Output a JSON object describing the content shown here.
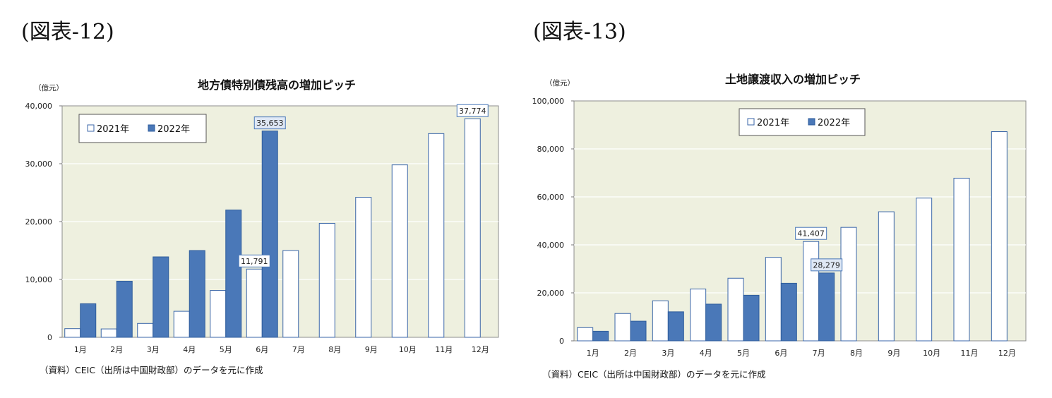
{
  "figures": [
    {
      "label": "(図表-12)",
      "source": "（資料）CEIC（出所は中国財政部）のデータを元に作成",
      "chart_data": {
        "type": "bar",
        "title": "地方債特別債残高の増加ピッチ",
        "ylabel": "（億元）",
        "xlabel": "",
        "ylim": [
          0,
          40000
        ],
        "yticks": [
          0,
          10000,
          20000,
          30000,
          40000
        ],
        "ytick_labels": [
          "0",
          "10,000",
          "20,000",
          "30,000",
          "40,000"
        ],
        "categories": [
          "1月",
          "2月",
          "3月",
          "4月",
          "5月",
          "6月",
          "7月",
          "8月",
          "9月",
          "10月",
          "11月",
          "12月"
        ],
        "series": [
          {
            "name": "2021年",
            "color": "#ffffff",
            "values": [
              1500,
              1450,
              2400,
              4500,
              8100,
              11791,
              15000,
              19700,
              24200,
              29800,
              35200,
              37774
            ]
          },
          {
            "name": "2022年",
            "color": "#4a78b8",
            "values": [
              5800,
              9700,
              13900,
              15000,
              22000,
              35653,
              null,
              null,
              null,
              null,
              null,
              null
            ]
          }
        ],
        "annotations": [
          {
            "series": 0,
            "index": 5,
            "text": "11,791"
          },
          {
            "series": 1,
            "index": 5,
            "text": "35,653"
          },
          {
            "series": 0,
            "index": 11,
            "text": "37,774"
          }
        ],
        "legend_position": "top-left",
        "grid": true,
        "plot_bg": "#eef0df"
      }
    },
    {
      "label": "(図表-13)",
      "source": "（資料）CEIC（出所は中国財政部）のデータを元に作成",
      "chart_data": {
        "type": "bar",
        "title": "土地譲渡収入の増加ピッチ",
        "ylabel": "（億元）",
        "xlabel": "",
        "ylim": [
          0,
          100000
        ],
        "yticks": [
          0,
          20000,
          40000,
          60000,
          80000,
          100000
        ],
        "ytick_labels": [
          "0",
          "20,000",
          "40,000",
          "60,000",
          "80,000",
          "100,000"
        ],
        "categories": [
          "1月",
          "2月",
          "3月",
          "4月",
          "5月",
          "6月",
          "7月",
          "8月",
          "9月",
          "10月",
          "11月",
          "12月"
        ],
        "series": [
          {
            "name": "2021年",
            "color": "#ffffff",
            "values": [
              5500,
              11400,
              16700,
              21600,
              26100,
              34800,
              41407,
              47300,
              53800,
              59500,
              67800,
              87200
            ]
          },
          {
            "name": "2022年",
            "color": "#4a78b8",
            "values": [
              4000,
              8200,
              12100,
              15300,
              19000,
              24000,
              28279,
              null,
              null,
              null,
              null,
              null
            ]
          }
        ],
        "annotations": [
          {
            "series": 0,
            "index": 6,
            "text": "41,407"
          },
          {
            "series": 1,
            "index": 6,
            "text": "28,279"
          }
        ],
        "legend_position": "top-center",
        "grid": true,
        "plot_bg": "#eef0df"
      }
    }
  ]
}
